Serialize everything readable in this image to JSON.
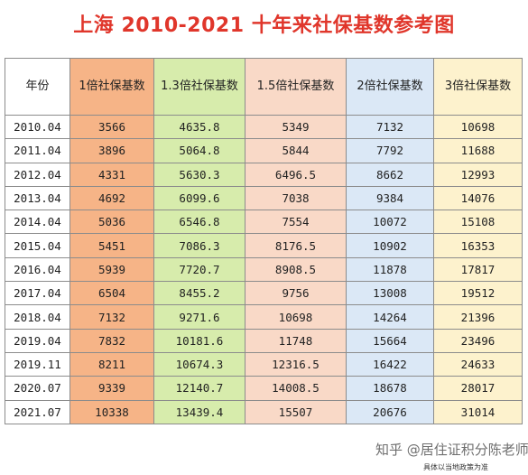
{
  "title": "上海 2010-2021 十年来社保基数参考图",
  "headers": [
    "年份",
    "1倍社保基数",
    "1.3倍社保基数",
    "1.5倍社保基数",
    "2倍社保基数",
    "3倍社保基数"
  ],
  "rows": [
    [
      "2010.04",
      "3566",
      "4635.8",
      "5349",
      "7132",
      "10698"
    ],
    [
      "2011.04",
      "3896",
      "5064.8",
      "5844",
      "7792",
      "11688"
    ],
    [
      "2012.04",
      "4331",
      "5630.3",
      "6496.5",
      "8662",
      "12993"
    ],
    [
      "2013.04",
      "4692",
      "6099.6",
      "7038",
      "9384",
      "14076"
    ],
    [
      "2014.04",
      "5036",
      "6546.8",
      "7554",
      "10072",
      "15108"
    ],
    [
      "2015.04",
      "5451",
      "7086.3",
      "8176.5",
      "10902",
      "16353"
    ],
    [
      "2016.04",
      "5939",
      "7720.7",
      "8908.5",
      "11878",
      "17817"
    ],
    [
      "2017.04",
      "6504",
      "8455.2",
      "9756",
      "13008",
      "19512"
    ],
    [
      "2018.04",
      "7132",
      "9271.6",
      "10698",
      "14264",
      "21396"
    ],
    [
      "2019.04",
      "7832",
      "10181.6",
      "11748",
      "15664",
      "23496"
    ],
    [
      "2019.11",
      "8211",
      "10674.3",
      "12316.5",
      "16422",
      "24633"
    ],
    [
      "2020.07",
      "9339",
      "12140.7",
      "14008.5",
      "18678",
      "28017"
    ],
    [
      "2021.07",
      "10338",
      "13439.4",
      "15507",
      "20676",
      "31014"
    ]
  ],
  "watermark": "知乎 @居住证积分陈老师",
  "note": "具体以当地政策为准",
  "colors": {
    "title": "#e0362b",
    "col_1x": "#f6b487",
    "col_1_3x": "#d7ecac",
    "col_1_5x": "#f9d9c7",
    "col_2x": "#dbe8f6",
    "col_3x": "#fdf2cd"
  }
}
